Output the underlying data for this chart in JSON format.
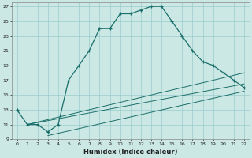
{
  "xlabel": "Humidex (Indice chaleur)",
  "bg_color": "#cce8e4",
  "grid_color": "#99cccc",
  "line_color": "#1a6e6a",
  "main_line_x": [
    0,
    1,
    2,
    3,
    4,
    5,
    6,
    7,
    8,
    9,
    10,
    11,
    12,
    13,
    14,
    15,
    16,
    17,
    18,
    19,
    20,
    21,
    22
  ],
  "main_line_y": [
    13,
    11,
    11,
    10,
    11,
    17,
    19,
    21,
    24,
    24,
    26,
    26,
    26.5,
    27,
    27,
    25,
    23,
    21,
    19.5,
    19,
    18,
    17,
    16
  ],
  "line2_x": [
    1,
    22
  ],
  "line2_y": [
    11,
    16.5
  ],
  "line3_x": [
    1,
    22
  ],
  "line3_y": [
    11,
    18
  ],
  "line4_x": [
    3,
    22
  ],
  "line4_y": [
    9.5,
    15.5
  ],
  "xlim": [
    -0.5,
    22.5
  ],
  "ylim": [
    9,
    27.5
  ],
  "xticks": [
    0,
    1,
    2,
    3,
    4,
    5,
    6,
    7,
    8,
    9,
    10,
    11,
    12,
    13,
    14,
    15,
    16,
    17,
    18,
    19,
    20,
    21,
    22
  ],
  "yticks": [
    9,
    11,
    13,
    15,
    17,
    19,
    21,
    23,
    25,
    27
  ],
  "xlabel_fontsize": 6,
  "tick_fontsize": 4.5
}
